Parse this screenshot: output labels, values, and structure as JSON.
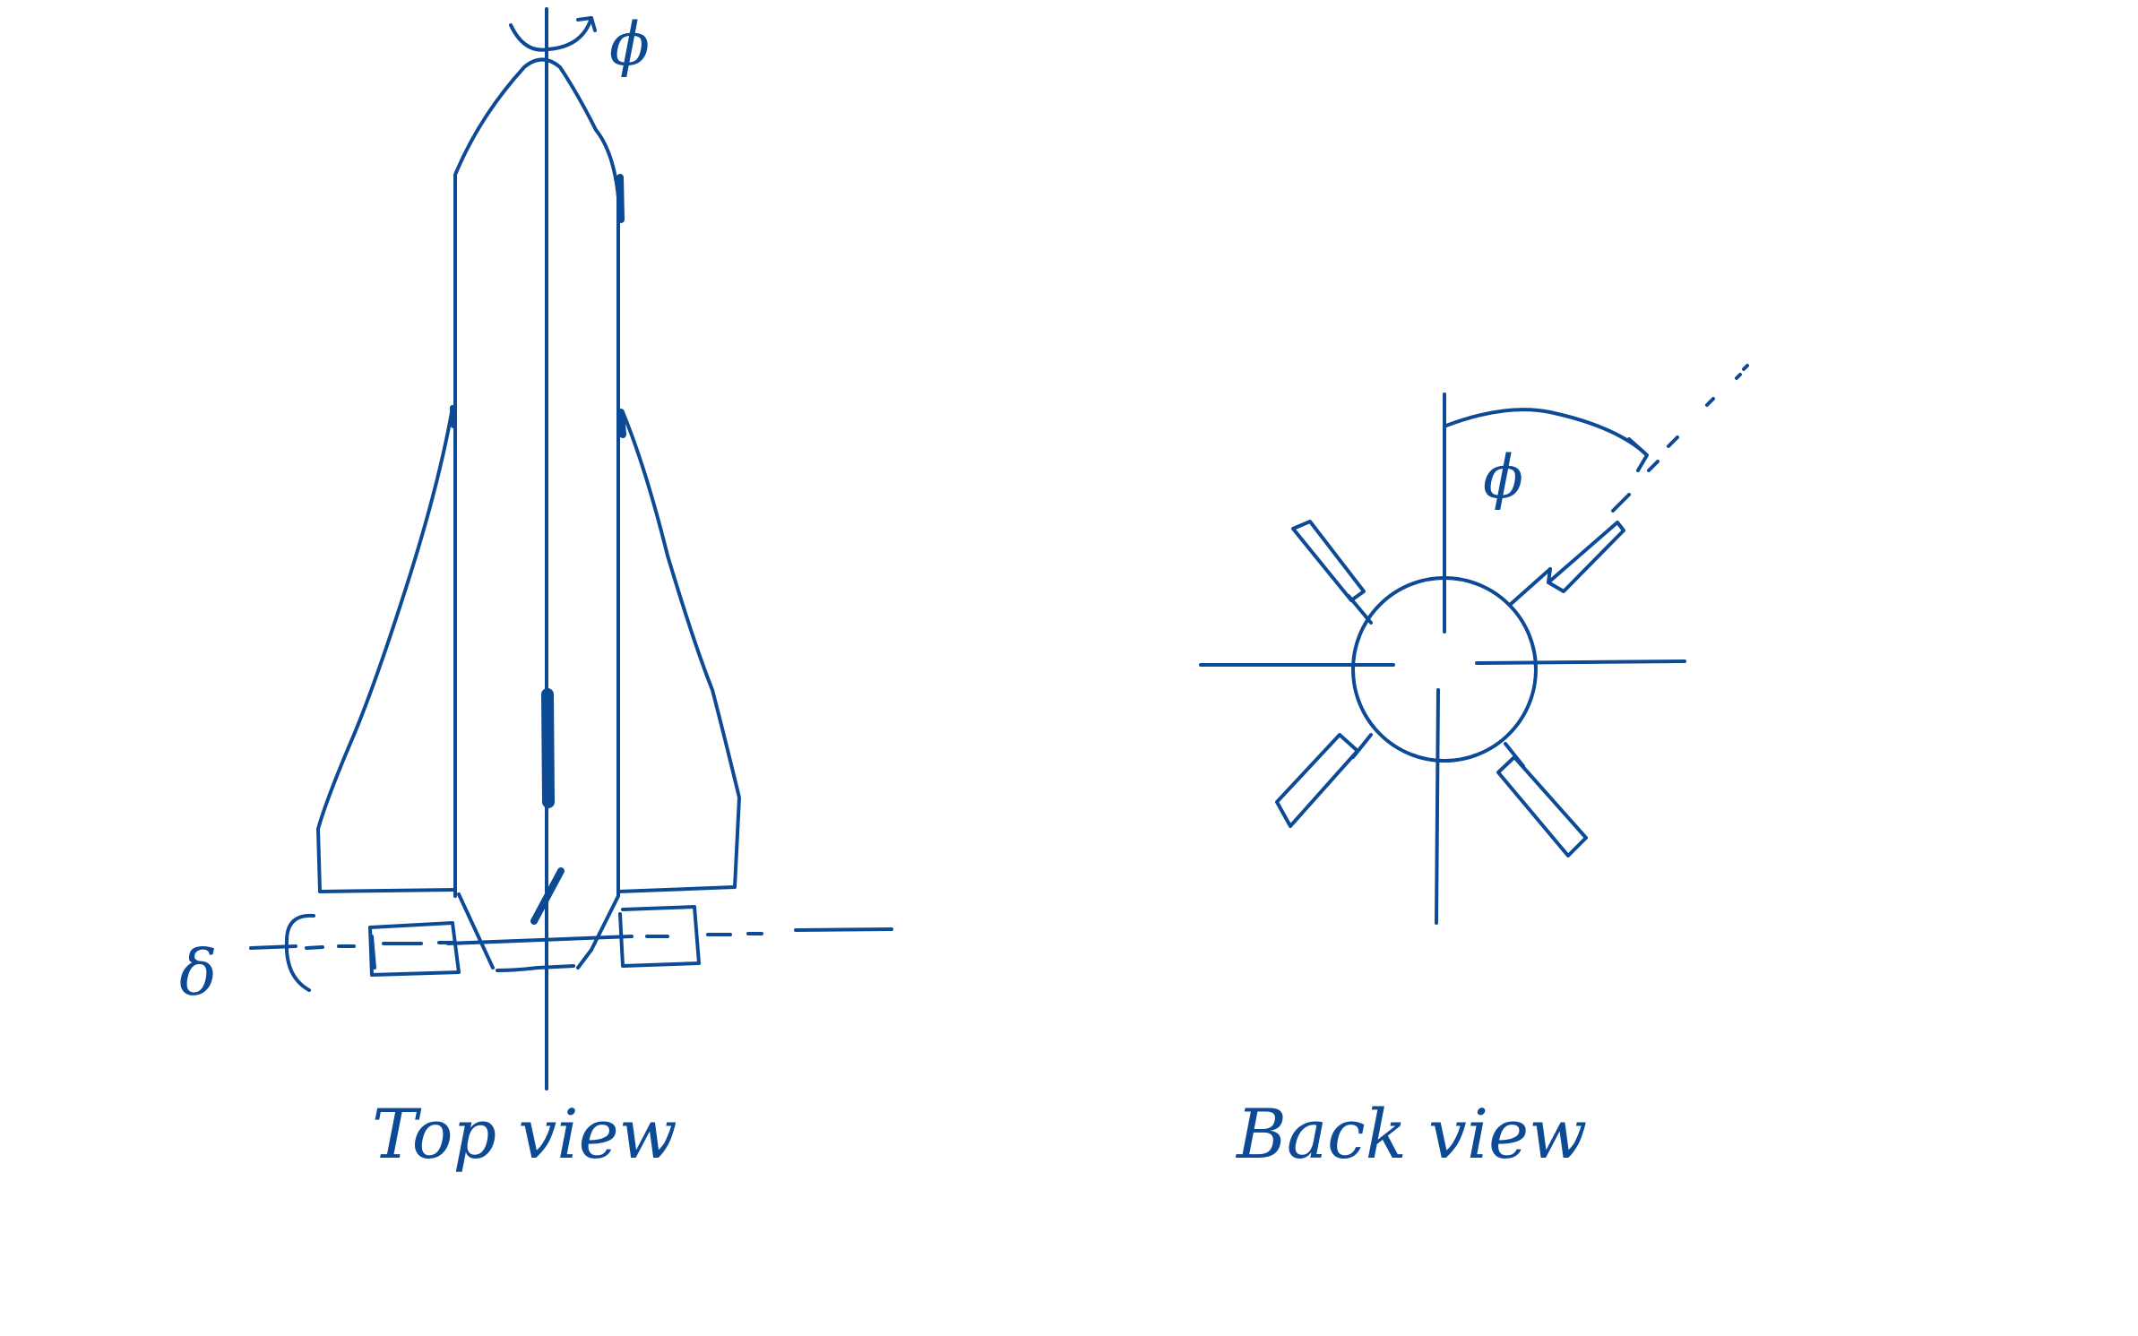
{
  "colors": {
    "ink": "#0d4a96",
    "background": "#ffffff"
  },
  "labels": {
    "top_view": "Top view",
    "back_view": "Back view",
    "phi_top": "ϕ",
    "phi_back": "ϕ",
    "delta": "δ"
  }
}
